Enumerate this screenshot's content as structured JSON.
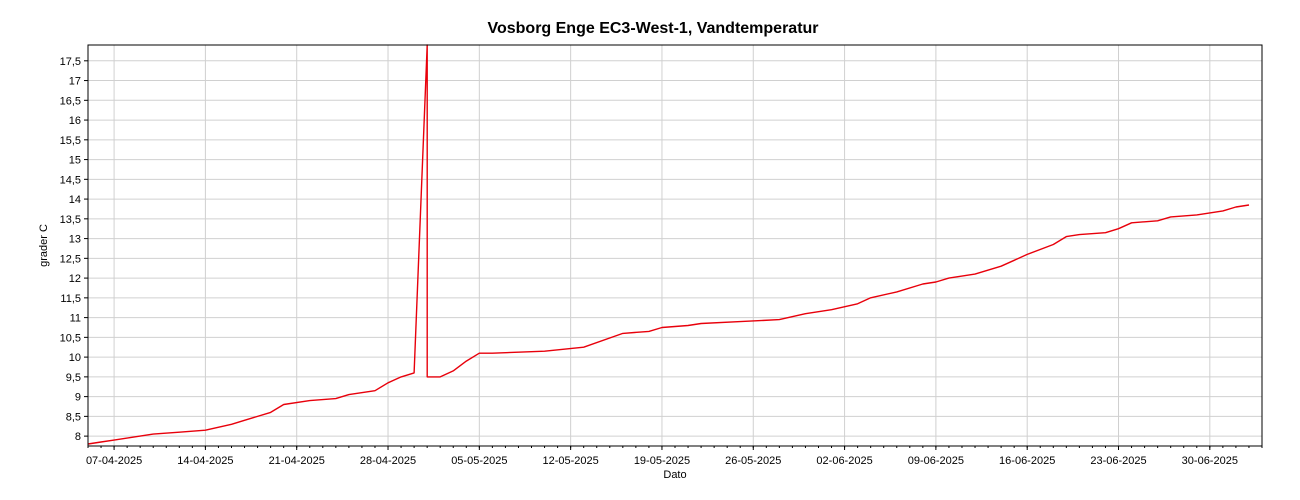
{
  "chart_data": {
    "type": "line",
    "title": "Vosborg Enge EC3-West-1, Vandtemperatur",
    "xlabel": "Dato",
    "ylabel": "grader C",
    "x_tick_labels": [
      "07-04-2025",
      "14-04-2025",
      "21-04-2025",
      "28-04-2025",
      "05-05-2025",
      "12-05-2025",
      "19-05-2025",
      "26-05-2025",
      "02-06-2025",
      "09-06-2025",
      "16-06-2025",
      "23-06-2025",
      "30-06-2025"
    ],
    "y_tick_labels": [
      "8",
      "8,5",
      "9",
      "9,5",
      "10",
      "10,5",
      "11",
      "11,5",
      "12",
      "12,5",
      "13",
      "13,5",
      "14",
      "14,5",
      "15",
      "15,5",
      "16",
      "16,5",
      "17",
      "17,5"
    ],
    "xlim": [
      "2025-04-05",
      "2025-07-04"
    ],
    "ylim": [
      7.75,
      17.9
    ],
    "grid": true,
    "series": [
      {
        "color": "#e8000b",
        "x": [
          "2025-04-05",
          "2025-04-06",
          "2025-04-07",
          "2025-04-08",
          "2025-04-10",
          "2025-04-12",
          "2025-04-14",
          "2025-04-16",
          "2025-04-17",
          "2025-04-19",
          "2025-04-20",
          "2025-04-22",
          "2025-04-24",
          "2025-04-25",
          "2025-04-27",
          "2025-04-28",
          "2025-04-29",
          "2025-04-30",
          "2025-05-01",
          "2025-05-01",
          "2025-05-01",
          "2025-05-02",
          "2025-05-03",
          "2025-05-04",
          "2025-05-05",
          "2025-05-06",
          "2025-05-10",
          "2025-05-13",
          "2025-05-16",
          "2025-05-18",
          "2025-05-19",
          "2025-05-21",
          "2025-05-22",
          "2025-05-25",
          "2025-05-28",
          "2025-05-30",
          "2025-06-01",
          "2025-06-03",
          "2025-06-04",
          "2025-06-06",
          "2025-06-08",
          "2025-06-09",
          "2025-06-10",
          "2025-06-12",
          "2025-06-14",
          "2025-06-15",
          "2025-06-16",
          "2025-06-18",
          "2025-06-19",
          "2025-06-20",
          "2025-06-22",
          "2025-06-23",
          "2025-06-24",
          "2025-06-26",
          "2025-06-27",
          "2025-06-29",
          "2025-07-01",
          "2025-07-02",
          "2025-07-03"
        ],
        "y": [
          7.8,
          7.85,
          7.9,
          7.95,
          8.05,
          8.1,
          8.15,
          8.3,
          8.4,
          8.6,
          8.8,
          8.9,
          8.95,
          9.05,
          9.15,
          9.35,
          9.5,
          9.6,
          17.9,
          9.6,
          9.5,
          9.5,
          9.65,
          9.9,
          10.1,
          10.1,
          10.15,
          10.25,
          10.6,
          10.65,
          10.75,
          10.8,
          10.85,
          10.9,
          10.95,
          11.1,
          11.2,
          11.35,
          11.5,
          11.65,
          11.85,
          11.9,
          12.0,
          12.1,
          12.3,
          12.45,
          12.6,
          12.85,
          13.05,
          13.1,
          13.15,
          13.25,
          13.4,
          13.45,
          13.55,
          13.6,
          13.7,
          13.8,
          13.85
        ]
      }
    ]
  }
}
